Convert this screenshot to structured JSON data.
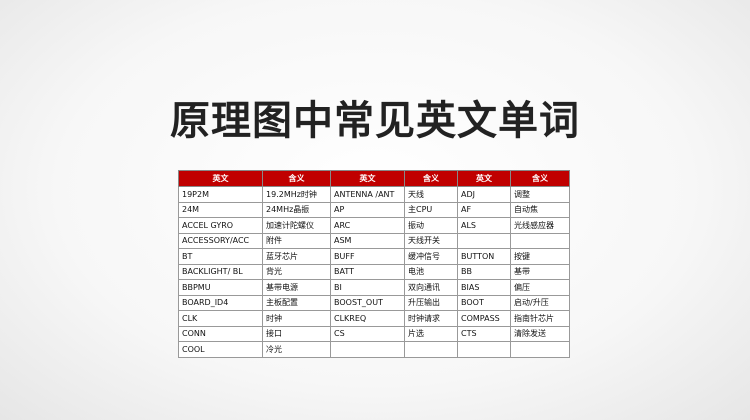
{
  "title": "原理图中常见英文单词",
  "table": {
    "header": [
      "英文",
      "含义",
      "英文",
      "含义",
      "英文",
      "含义"
    ],
    "rows": [
      [
        "19P2M",
        "19.2MHz时钟",
        "ANTENNA /ANT",
        "天线",
        "ADJ",
        "调整"
      ],
      [
        "24M",
        "24MHz晶振",
        "AP",
        "主CPU",
        "AF",
        "自动焦"
      ],
      [
        "ACCEL GYRO",
        "加速计陀螺仪",
        "ARC",
        "振动",
        "ALS",
        "光线感应器"
      ],
      [
        "ACCESSORY/ACC",
        "附件",
        "ASM",
        "天线开关",
        null,
        null
      ],
      [
        "BT",
        "蓝牙芯片",
        "BUFF",
        "缓冲信号",
        "BUTTON",
        "按键"
      ],
      [
        "BACKLIGHT/ BL",
        "背光",
        "BATT",
        "电池",
        "BB",
        "基带"
      ],
      [
        "BBPMU",
        "基带电源",
        "BI",
        "双向通讯",
        "BIAS",
        "偏压"
      ],
      [
        "BOARD_ID4",
        "主板配置",
        "BOOST_OUT",
        "升压输出",
        "BOOT",
        "启动/升压"
      ],
      [
        "CLK",
        "时钟",
        "CLKREQ",
        "时钟请求",
        "COMPASS",
        "指南针芯片"
      ],
      [
        "CONN",
        "接口",
        "CS",
        "片选",
        "CTS",
        "清除发送"
      ],
      [
        "COOL",
        "冷光",
        null,
        null,
        null,
        null
      ]
    ]
  }
}
